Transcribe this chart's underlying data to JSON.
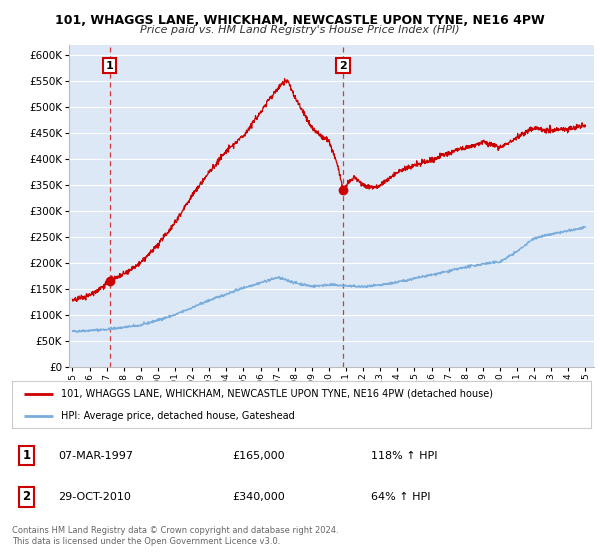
{
  "title": "101, WHAGGS LANE, WHICKHAM, NEWCASTLE UPON TYNE, NE16 4PW",
  "subtitle": "Price paid vs. HM Land Registry's House Price Index (HPI)",
  "legend_line1": "101, WHAGGS LANE, WHICKHAM, NEWCASTLE UPON TYNE, NE16 4PW (detached house)",
  "legend_line2": "HPI: Average price, detached house, Gateshead",
  "table_row1": [
    "1",
    "07-MAR-1997",
    "£165,000",
    "118% ↑ HPI"
  ],
  "table_row2": [
    "2",
    "29-OCT-2010",
    "£340,000",
    "64% ↑ HPI"
  ],
  "footnote": "Contains HM Land Registry data © Crown copyright and database right 2024.\nThis data is licensed under the Open Government Licence v3.0.",
  "sale1_date": 1997.18,
  "sale1_price": 165000,
  "sale2_date": 2010.83,
  "sale2_price": 340000,
  "red_line_color": "#cc0000",
  "blue_line_color": "#7aaddc",
  "plot_bg_color": "#dce8f5",
  "ylim_max": 620000,
  "xlim_min": 1994.8,
  "xlim_max": 2025.5
}
